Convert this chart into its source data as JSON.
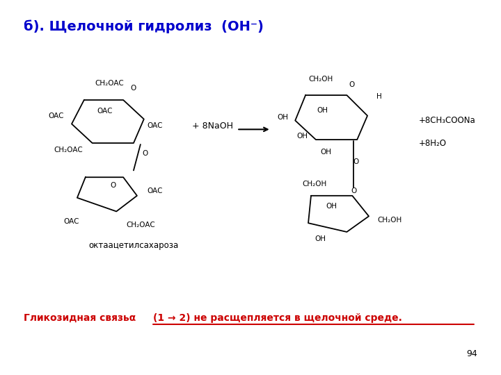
{
  "title": "б). Щелочной гидролиз  (OH⁻)",
  "title_color": "#0000cc",
  "bg_color": "#ffffff",
  "reagent_label": "+ 8NaOH",
  "product1_label": "+8CH₃COONa",
  "product2_label": "+8H₂O",
  "reactant_label": "октаацетилсахароза",
  "page_number": "94"
}
